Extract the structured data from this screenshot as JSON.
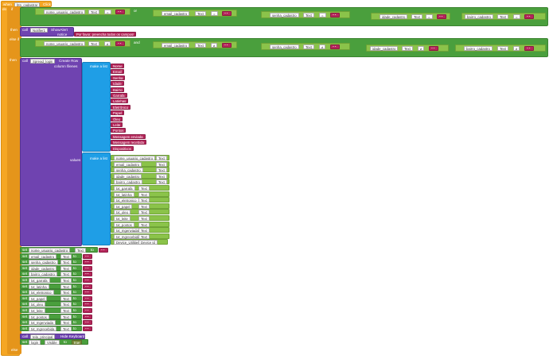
{
  "event": {
    "when": "when",
    "component": "btn_cadastrar",
    "event_name": "Click",
    "do": "do"
  },
  "if_block": {
    "if": "if",
    "then": "then",
    "else_if": "else if",
    "else_then": "then",
    "else": "else"
  },
  "condition_fields": [
    {
      "var": "nome_usuario_cadastro",
      "prop": "Text",
      "op": "=",
      "value": ""
    },
    {
      "var": "email_cadastro",
      "prop": "Text",
      "op": "=",
      "value": ""
    },
    {
      "var": "senha_cadastro",
      "prop": "Text",
      "op": "=",
      "value": ""
    },
    {
      "var": "idade_cadastro",
      "prop": "Text",
      "op": "=",
      "value": ""
    },
    {
      "var": "bairro_cadastro",
      "prop": "Text",
      "op": "=",
      "value": ""
    }
  ],
  "logic_op": "or",
  "else_if_op": "and",
  "else_if_compare": "≠",
  "then_call": {
    "call": "call",
    "component": "Notifier1",
    "method": "ShowAlert",
    "param": "notice",
    "message": "Por favor, preencha todos os campos!"
  },
  "spreadsheet_call": {
    "call": "call",
    "component": "Spread_login",
    "method": "Create Row",
    "column_param": "column filenes",
    "values_param": "values",
    "make_list": "make a list"
  },
  "column_names": [
    "Nome",
    "Email",
    "Senha",
    "Idade",
    "Bairro",
    "Garrafa",
    "Latinhas",
    "Eletrônico",
    "Papel",
    "Óleo",
    "Leite",
    "Pontos",
    "Mensagem enviada",
    "Mensagem recebida",
    "Dispositivos"
  ],
  "values_list": [
    {
      "var": "nome_usuario_cadastro",
      "prop": "Text"
    },
    {
      "var": "email_cadastro",
      "prop": "Text"
    },
    {
      "var": "senha_cadastro",
      "prop": "Text"
    },
    {
      "var": "idade_cadastro",
      "prop": "Text"
    },
    {
      "var": "bairro_cadastro",
      "prop": "Text"
    },
    {
      "var": "txt_garrafa",
      "prop": "Text"
    },
    {
      "var": "txt_latinha",
      "prop": "Text"
    },
    {
      "var": "txt_eletronico",
      "prop": "Text"
    },
    {
      "var": "txt_papel",
      "prop": "Text"
    },
    {
      "var": "txt_oleo",
      "prop": "Text"
    },
    {
      "var": "txt_leite",
      "prop": "Text"
    },
    {
      "var": "txt_pontos",
      "prop": "Text"
    },
    {
      "var": "txt_mgenviada",
      "prop": "Text"
    },
    {
      "var": "txt_mgrecebida",
      "prop": "Text"
    },
    {
      "var": "Device_Utilities1",
      "prop": "Device Id"
    }
  ],
  "set_blocks": [
    {
      "set": "set",
      "var": "nome_usuario_cadastro",
      "prop": "Text",
      "to": "to"
    },
    {
      "set": "set",
      "var": "email_cadastro",
      "prop": "Text",
      "to": "to"
    },
    {
      "set": "set",
      "var": "senha_cadastro",
      "prop": "Text",
      "to": "to"
    },
    {
      "set": "set",
      "var": "idade_cadastro",
      "prop": "Text",
      "to": "to"
    },
    {
      "set": "set",
      "var": "bairro_cadastro",
      "prop": "Text",
      "to": "to"
    },
    {
      "set": "set",
      "var": "txt_garrafa",
      "prop": "Text",
      "to": "to"
    },
    {
      "set": "set",
      "var": "txt_latinha",
      "prop": "Text",
      "to": "to"
    },
    {
      "set": "set",
      "var": "txt_eletronico",
      "prop": "Text",
      "to": "to"
    },
    {
      "set": "set",
      "var": "txt_papel",
      "prop": "Text",
      "to": "to"
    },
    {
      "set": "set",
      "var": "txt_oleo",
      "prop": "Text",
      "to": "to"
    },
    {
      "set": "set",
      "var": "txt_leite",
      "prop": "Text",
      "to": "to"
    },
    {
      "set": "set",
      "var": "txt_pontos",
      "prop": "Text",
      "to": "to"
    },
    {
      "set": "set",
      "var": "txt_mgenviada",
      "prop": "Text",
      "to": "to"
    },
    {
      "set": "set",
      "var": "txt_mgrecebida",
      "prop": "Text",
      "to": "to"
    }
  ],
  "hide_keyboard": {
    "call": "call",
    "component": "tela_principal",
    "method": "Hide Keyboard"
  },
  "set_login": {
    "set": "set",
    "var": "login",
    "prop": "Visible",
    "to": "to",
    "value": "true"
  },
  "empty_string": ""
}
